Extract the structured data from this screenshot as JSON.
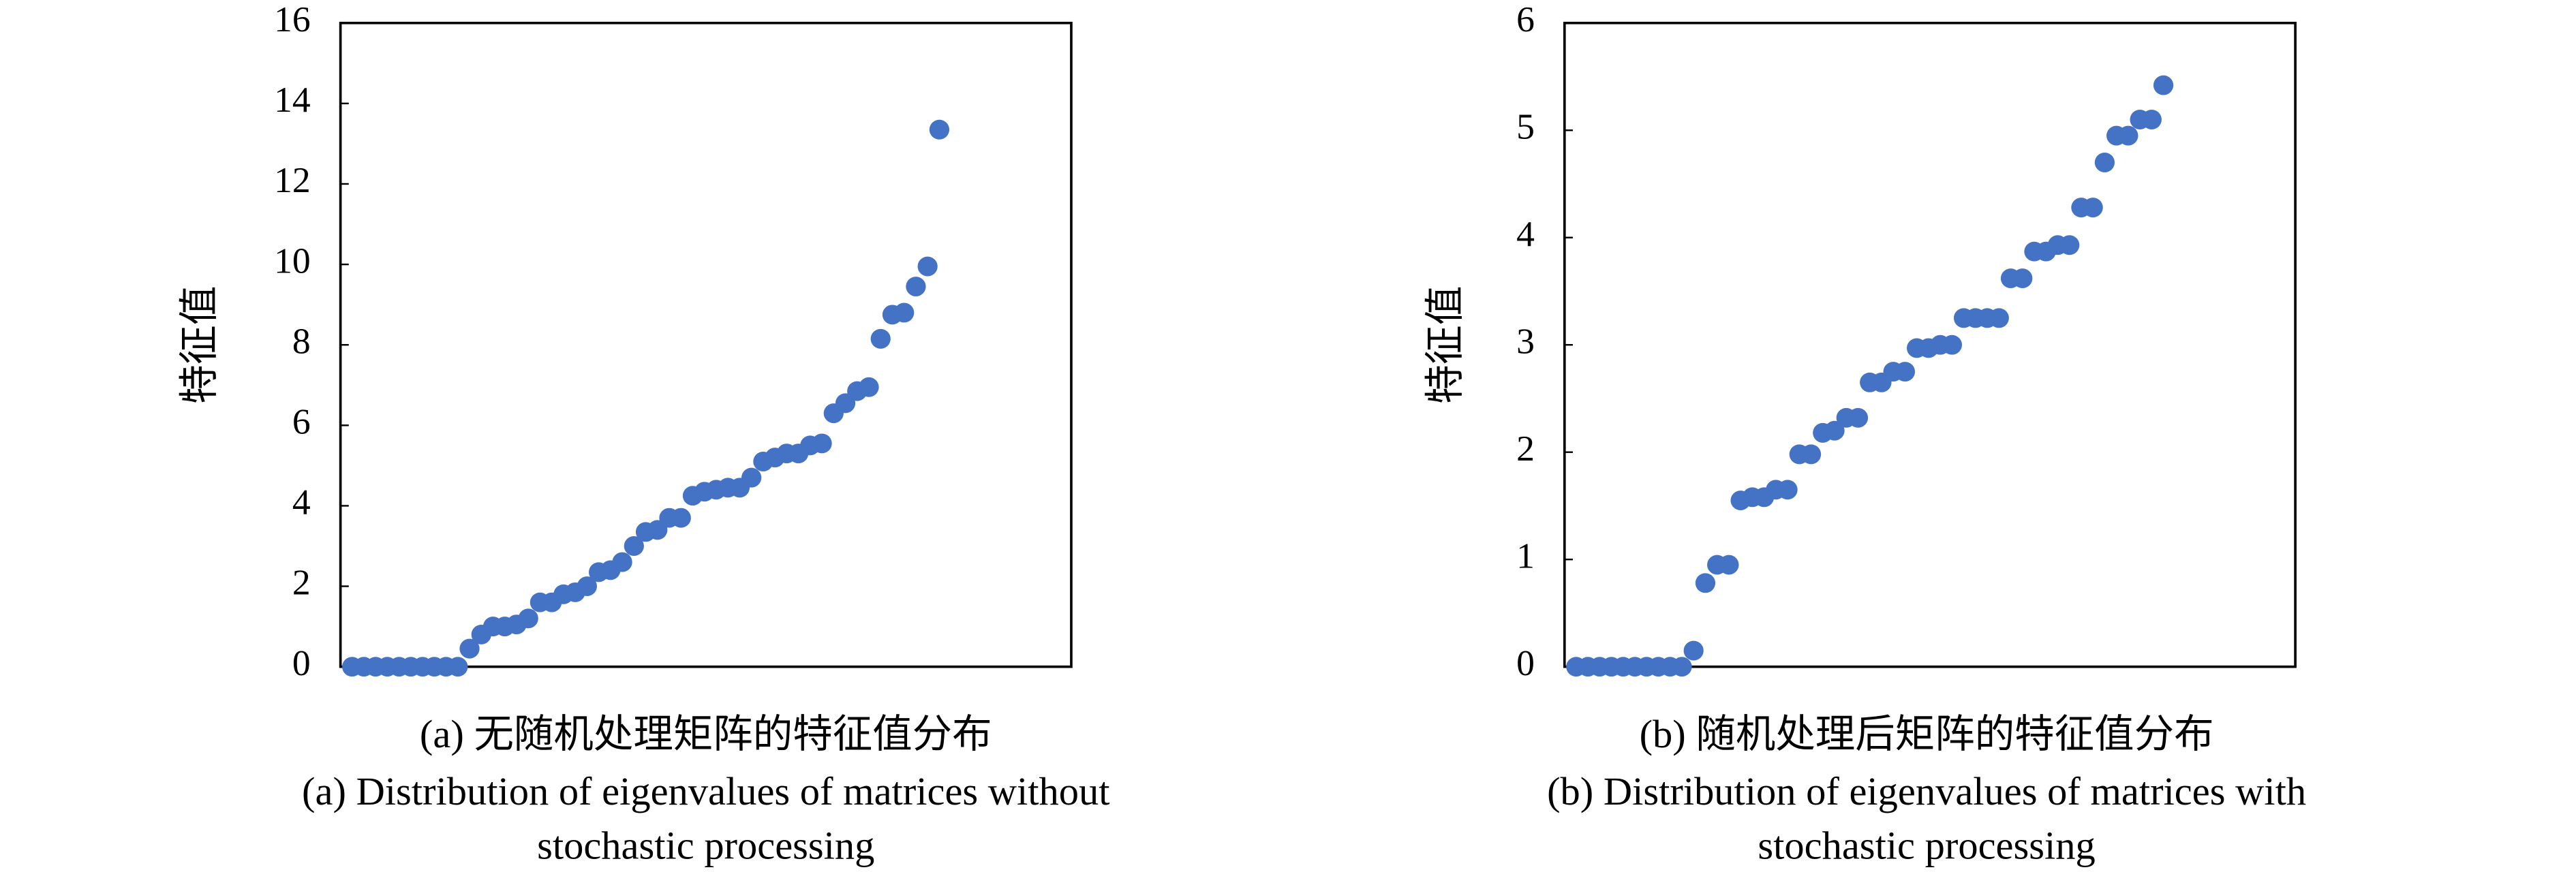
{
  "chart_data": [
    {
      "type": "scatter",
      "y_label": "特征值",
      "color": "#4472c4",
      "caption": [
        "(a) 无随机处理矩阵的特征值分布",
        "(a) Distribution of eigenvalues of matrices without",
        "stochastic processing"
      ],
      "ylim": [
        0,
        16
      ],
      "yticks": [
        0,
        2,
        4,
        6,
        8,
        10,
        12,
        14,
        16
      ],
      "values": [
        0,
        0,
        0,
        0,
        0,
        0,
        0,
        0,
        0,
        0,
        0.45,
        0.8,
        1.0,
        1.0,
        1.05,
        1.2,
        1.6,
        1.6,
        1.8,
        1.85,
        2.0,
        2.35,
        2.4,
        2.6,
        3.0,
        3.35,
        3.4,
        3.7,
        3.7,
        4.25,
        4.35,
        4.4,
        4.45,
        4.45,
        4.7,
        5.1,
        5.2,
        5.3,
        5.3,
        5.5,
        5.55,
        6.3,
        6.55,
        6.85,
        6.95,
        8.15,
        8.75,
        8.8,
        9.45,
        9.95,
        13.35
      ]
    },
    {
      "type": "scatter",
      "y_label": "特征值",
      "color": "#4472c4",
      "caption": [
        "(b) 随机处理后矩阵的特征值分布",
        "(b) Distribution of eigenvalues of matrices with",
        "stochastic processing"
      ],
      "ylim": [
        0,
        6
      ],
      "yticks": [
        0,
        1,
        2,
        3,
        4,
        5,
        6
      ],
      "values": [
        0,
        0,
        0,
        0,
        0,
        0,
        0,
        0,
        0,
        0,
        0.15,
        0.78,
        0.95,
        0.95,
        1.55,
        1.58,
        1.58,
        1.65,
        1.65,
        1.98,
        1.98,
        2.18,
        2.2,
        2.32,
        2.32,
        2.65,
        2.65,
        2.75,
        2.75,
        2.97,
        2.97,
        3.0,
        3.0,
        3.25,
        3.25,
        3.25,
        3.25,
        3.62,
        3.62,
        3.87,
        3.87,
        3.93,
        3.93,
        4.28,
        4.28,
        4.7,
        4.95,
        4.95,
        5.1,
        5.1,
        5.42
      ]
    }
  ]
}
